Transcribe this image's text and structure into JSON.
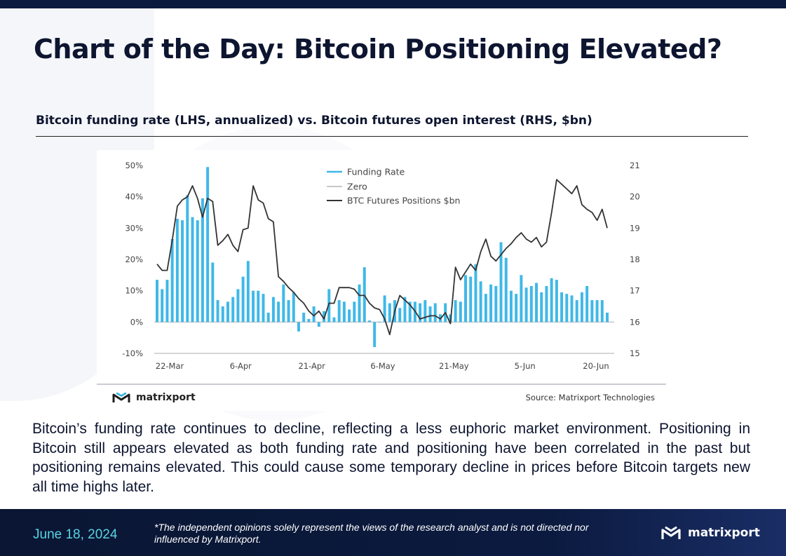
{
  "header": {
    "title": "Chart of the Day: Bitcoin Positioning Elevated?",
    "subtitle": "Bitcoin funding rate (LHS, annualized) vs. Bitcoin futures open interest (RHS, $bn)"
  },
  "chart_card": {
    "logo_text": "matrixport",
    "source": "Source: Matrixport Technologies"
  },
  "body": {
    "paragraph": "Bitcoin’s funding rate continues to decline, reflecting a less euphoric market environment. Positioning in Bitcoin still appears elevated as both funding rate and positioning have been correlated in the past but positioning remains elevated. This could cause some temporary decline in prices before Bitcoin targets new all time highs later."
  },
  "footer": {
    "date": "June 18, 2024",
    "disclaimer": "*The independent opinions solely represent the views of the research analyst and is not directed nor influenced by Matrixport.",
    "logo_text": "matrixport"
  },
  "colors": {
    "navy": "#0b1a3f",
    "funding_bar": "#3fb8e8",
    "positions_line": "#333333",
    "zero_line": "#c8c8c8",
    "date_accent": "#58d4e4"
  },
  "chart_data": {
    "type": "bar+line",
    "title": "",
    "x_tick_labels": [
      "22-Mar",
      "6-Apr",
      "21-Apr",
      "6-May",
      "21-May",
      "5-Jun",
      "20-Jun"
    ],
    "y_left": {
      "ticks": [
        "50%",
        "40%",
        "30%",
        "20%",
        "10%",
        "0%",
        "-10%"
      ],
      "min": -10,
      "max": 50,
      "unit": "%"
    },
    "y_right": {
      "ticks": [
        "21",
        "20",
        "19",
        "18",
        "17",
        "16",
        "15"
      ],
      "min": 15,
      "max": 21
    },
    "legend": {
      "position": "top-center",
      "entries": [
        {
          "name": "Funding Rate",
          "kind": "bar"
        },
        {
          "name": "Zero",
          "kind": "line"
        },
        {
          "name": "BTC Futures Positions $bn",
          "kind": "line"
        }
      ]
    },
    "grid": false,
    "series": [
      {
        "name": "Funding Rate",
        "type": "bar",
        "axis": "left",
        "values": [
          13.5,
          10.5,
          13.5,
          26.5,
          33,
          32.5,
          40.5,
          33.5,
          32.5,
          39.5,
          49.5,
          19,
          7,
          5,
          6.5,
          8,
          10.5,
          14.5,
          19.5,
          10,
          10,
          9,
          3,
          8,
          6.5,
          12,
          7,
          9.5,
          -3,
          3,
          1,
          5,
          -1.5,
          3.5,
          10.5,
          1.5,
          7,
          6.5,
          4,
          6.5,
          12,
          17.5,
          0.5,
          -8,
          0,
          8.5,
          6,
          7,
          4.5,
          8,
          6.5,
          6.5,
          6,
          7,
          5,
          6,
          2.5,
          6,
          2.5,
          7,
          6.5,
          15,
          14.5,
          18.5,
          13,
          9,
          12,
          11.5,
          25.5,
          20.5,
          10,
          9,
          15,
          11,
          11.5,
          12.5,
          9.5,
          11.5,
          14,
          13.5,
          9.5,
          9,
          8.5,
          7,
          9.5,
          11.5,
          7,
          7,
          7,
          3
        ]
      },
      {
        "name": "BTC Futures Positions $bn",
        "type": "line",
        "axis": "right",
        "values": [
          17.85,
          17.65,
          17.65,
          18.6,
          19.7,
          19.9,
          20,
          20.35,
          19.95,
          19.35,
          19.95,
          19.85,
          18.45,
          18.6,
          18.8,
          18.45,
          18.25,
          18.95,
          19,
          20.35,
          19.9,
          19.8,
          19.3,
          19.2,
          17.45,
          17.3,
          17.1,
          16.95,
          16.75,
          16.6,
          16.35,
          16.2,
          16.35,
          16.1,
          16.6,
          16.6,
          17.1,
          17.1,
          17.1,
          17.05,
          16.85,
          16.85,
          16.6,
          16.45,
          16.4,
          16.1,
          15.6,
          16.35,
          16.85,
          16.7,
          16.55,
          16.35,
          16.1,
          16.15,
          16.2,
          16.2,
          16.1,
          16.3,
          15.95,
          17.75,
          17.35,
          17.6,
          17.85,
          17.65,
          18.25,
          18.65,
          18.1,
          17.95,
          18.15,
          18.35,
          18.5,
          18.7,
          18.85,
          18.65,
          18.55,
          18.7,
          18.4,
          18.55,
          19.5,
          20.55,
          20.4,
          20.25,
          20.1,
          20.35,
          19.75,
          19.6,
          19.5,
          19.25,
          19.6,
          19
        ]
      },
      {
        "name": "Zero",
        "type": "line",
        "axis": "left",
        "values": [
          0
        ]
      }
    ]
  }
}
